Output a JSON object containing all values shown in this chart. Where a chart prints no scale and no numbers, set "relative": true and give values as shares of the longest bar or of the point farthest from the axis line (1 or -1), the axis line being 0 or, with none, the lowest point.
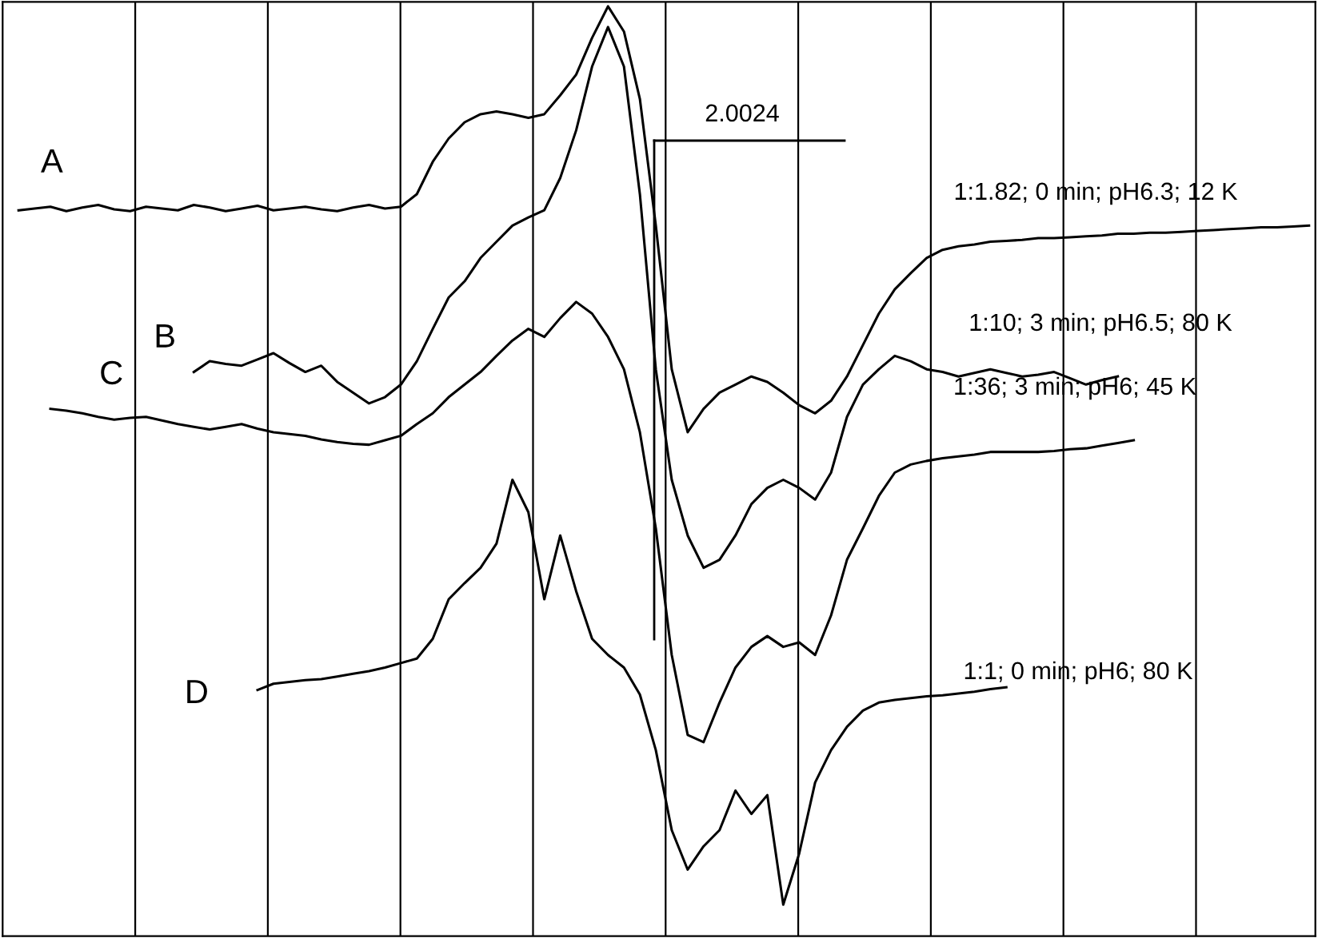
{
  "chart_data": {
    "type": "line",
    "relative": true,
    "grid": "x",
    "legend": false,
    "categories": [
      null,
      null,
      null,
      null,
      null,
      null,
      null,
      null,
      null,
      null,
      null,
      null,
      null,
      null,
      null,
      null,
      null,
      null,
      null,
      null,
      null,
      null,
      null,
      null,
      null,
      null,
      null,
      null,
      null,
      null,
      null,
      null,
      null,
      null,
      null,
      null,
      null,
      null,
      null,
      null,
      null,
      null,
      null,
      null,
      null,
      null,
      null,
      null,
      null,
      null,
      null,
      null,
      null,
      null,
      null,
      null,
      null,
      null,
      null,
      null,
      null,
      null,
      null,
      null,
      null,
      null,
      null,
      null,
      null,
      null,
      null,
      null,
      null,
      null,
      null,
      null,
      null,
      null,
      null,
      null,
      null,
      null
    ],
    "series": [
      {
        "name": "A",
        "color": "#000000",
        "values": [
          0.773,
          0.775,
          0.777,
          0.772,
          0.776,
          0.779,
          0.774,
          0.772,
          0.777,
          0.775,
          0.773,
          0.779,
          0.776,
          0.772,
          0.775,
          0.778,
          0.773,
          0.775,
          0.777,
          0.774,
          0.772,
          0.776,
          0.779,
          0.775,
          0.777,
          0.791,
          0.827,
          0.853,
          0.871,
          0.88,
          0.883,
          0.88,
          0.876,
          0.88,
          0.901,
          0.924,
          0.965,
          1.0,
          0.972,
          0.897,
          0.756,
          0.596,
          0.526,
          0.552,
          0.57,
          0.579,
          0.588,
          0.582,
          0.57,
          0.556,
          0.547,
          0.561,
          0.588,
          0.623,
          0.658,
          0.685,
          0.703,
          0.72,
          0.729,
          0.733,
          0.735,
          0.738,
          0.739,
          0.74,
          0.742,
          0.742,
          0.743,
          0.744,
          0.745,
          0.747,
          0.747,
          0.748,
          0.748,
          0.749,
          0.75,
          0.751,
          0.752,
          0.753,
          0.754,
          0.754,
          0.755,
          0.756
        ]
      },
      {
        "name": "B",
        "color": "#000000",
        "values": [
          null,
          null,
          null,
          null,
          null,
          null,
          null,
          null,
          null,
          null,
          null,
          0.593,
          0.605,
          0.602,
          0.6,
          0.607,
          0.614,
          0.603,
          0.593,
          0.6,
          0.582,
          0.57,
          0.558,
          0.565,
          0.579,
          0.605,
          0.641,
          0.676,
          0.694,
          0.72,
          0.738,
          0.756,
          0.765,
          0.773,
          0.809,
          0.862,
          0.933,
          0.977,
          0.933,
          0.791,
          0.596,
          0.473,
          0.411,
          0.375,
          0.384,
          0.411,
          0.446,
          0.464,
          0.473,
          0.464,
          0.451,
          0.481,
          0.543,
          0.579,
          0.596,
          0.611,
          0.605,
          0.596,
          0.593,
          0.588,
          0.592,
          0.596,
          0.592,
          0.588,
          0.59,
          0.593,
          0.586,
          0.579,
          0.584,
          0.588,
          null,
          null,
          null,
          null,
          null,
          null,
          null,
          null,
          null,
          null,
          null,
          null
        ]
      },
      {
        "name": "C",
        "color": "#000000",
        "values": [
          null,
          null,
          0.552,
          0.55,
          0.547,
          0.543,
          0.54,
          0.542,
          0.543,
          0.539,
          0.535,
          0.532,
          0.529,
          0.532,
          0.535,
          0.53,
          0.526,
          0.524,
          0.522,
          0.518,
          0.515,
          0.513,
          0.512,
          0.517,
          0.522,
          0.535,
          0.547,
          0.565,
          0.579,
          0.593,
          0.611,
          0.628,
          0.641,
          0.632,
          0.653,
          0.671,
          0.658,
          0.632,
          0.596,
          0.526,
          0.419,
          0.278,
          0.189,
          0.181,
          0.225,
          0.264,
          0.287,
          0.299,
          0.287,
          0.292,
          0.278,
          0.322,
          0.384,
          0.419,
          0.455,
          0.481,
          0.49,
          0.494,
          0.497,
          0.499,
          0.501,
          0.504,
          0.504,
          0.504,
          0.504,
          0.505,
          0.507,
          0.508,
          0.511,
          0.514,
          0.517,
          null,
          null,
          null,
          null,
          null,
          null,
          null,
          null,
          null,
          null,
          null
        ]
      },
      {
        "name": "D",
        "color": "#000000",
        "values": [
          null,
          null,
          null,
          null,
          null,
          null,
          null,
          null,
          null,
          null,
          null,
          null,
          null,
          null,
          null,
          0.239,
          0.246,
          0.248,
          0.25,
          0.251,
          0.254,
          0.257,
          0.26,
          0.264,
          0.269,
          0.274,
          0.296,
          0.34,
          0.358,
          0.375,
          0.402,
          0.473,
          0.437,
          0.34,
          0.411,
          0.349,
          0.296,
          0.278,
          0.264,
          0.234,
          0.172,
          0.083,
          0.039,
          0.065,
          0.083,
          0.127,
          0.101,
          0.122,
          0.0,
          0.057,
          0.136,
          0.172,
          0.198,
          0.216,
          0.225,
          0.228,
          0.23,
          0.232,
          0.233,
          0.235,
          0.237,
          0.24,
          0.242,
          null,
          null,
          null,
          null,
          null,
          null,
          null,
          null,
          null,
          null,
          null,
          null,
          null,
          null,
          null,
          null,
          null,
          null,
          null
        ]
      }
    ],
    "annotations": [
      "2.0024",
      "1:1.82; 0 min; pH6.3; 12 K",
      "1:10; 3 min; pH6.5; 80 K",
      "1:36; 3 min; pH6; 45 K",
      "1:1; 0 min; pH6; 80 K"
    ]
  }
}
